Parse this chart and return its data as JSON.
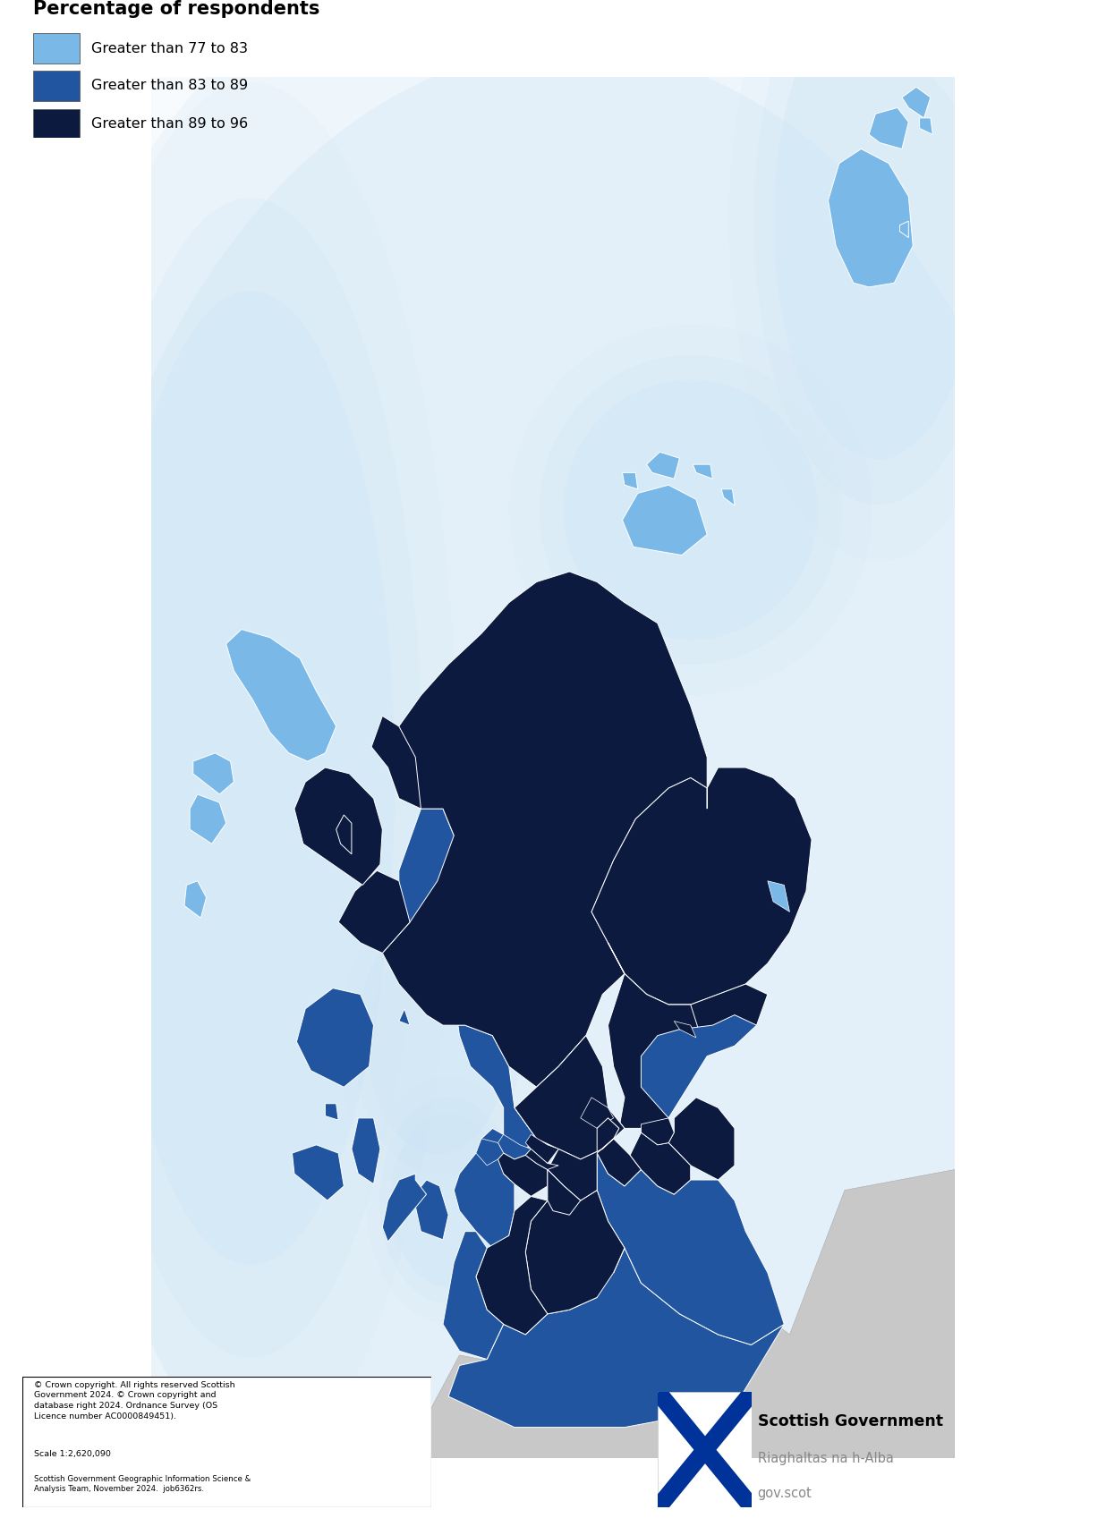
{
  "title": "Percentage of respondents",
  "legend_items": [
    {
      "label": "Greater than 77 to 83",
      "color": "#7ab8e8"
    },
    {
      "label": "Greater than 83 to 89",
      "color": "#2155a0"
    },
    {
      "label": "Greater than 89 to 96",
      "color": "#0c1a40"
    }
  ],
  "background_color": "#ffffff",
  "glow_color": "#cce4f5",
  "england_color": "#c8c8c8",
  "border_color": "#ffffff",
  "copyright_text": "© Crown copyright. All rights reserved Scottish\nGovernment 2024. © Crown copyright and\ndatabase right 2024. Ordnance Survey (OS\nLicence number AC0000849451).",
  "scale_text": "Scale 1:2,620,090",
  "credit_text": "Scottish Government Geographic Information Science &\nAnalysis Team, November 2024.  job6362rs.",
  "sg_name": "Scottish Government",
  "sg_gaelic": "Riaghaltas na h-Alba",
  "sg_web": "gov.scot",
  "figsize": [
    12.36,
    17.16
  ],
  "dpi": 100
}
